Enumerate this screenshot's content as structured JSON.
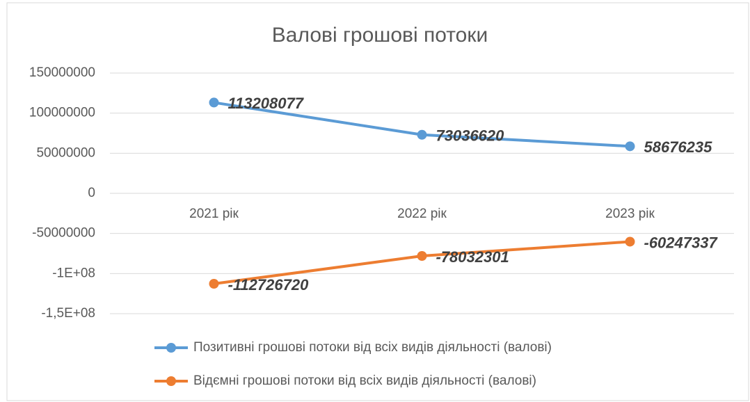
{
  "chart_data": {
    "type": "line",
    "title": "Валові грошові потоки",
    "categories": [
      "2021 рік",
      "2022 рік",
      "2023 рік"
    ],
    "series": [
      {
        "name": "Позитивні грошові потоки від всіх видів діяльності (валові)",
        "color": "#5b9bd5",
        "values": [
          113208077,
          73036620,
          58676235
        ]
      },
      {
        "name": "Відємні грошові потоки від всіх видів діяльності (валові)",
        "color": "#ed7d31",
        "values": [
          -112726720,
          -78032301,
          -60247337
        ]
      }
    ],
    "ylim": [
      -150000000,
      150000000
    ],
    "yticks": [
      150000000,
      100000000,
      50000000,
      0,
      -50000000,
      {
        "value": -100000000,
        "label": "-1E+08"
      },
      {
        "value": -150000000,
        "label": "-1,5E+08"
      }
    ],
    "grid": true,
    "legend": "bottom"
  }
}
